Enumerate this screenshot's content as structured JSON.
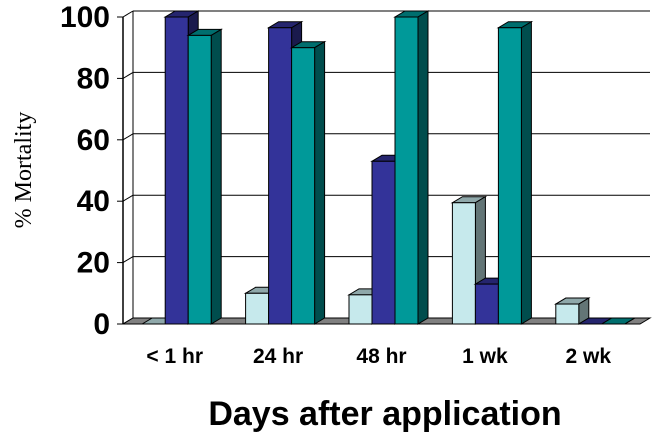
{
  "chart_data": {
    "type": "bar",
    "title": "",
    "xlabel": "Days after application",
    "ylabel": "% Mortality",
    "ylim": [
      0,
      100
    ],
    "yticks": [
      0,
      20,
      40,
      60,
      80,
      100
    ],
    "categories": [
      "< 1 hr",
      "24 hr",
      "48 hr",
      "1 wk",
      "2 wk"
    ],
    "series": [
      {
        "values": [
          0,
          10,
          9.5,
          39.5,
          6.5
        ],
        "color": "#c6e9ec"
      },
      {
        "values": [
          100,
          96.5,
          53,
          13,
          0
        ],
        "color": "#333399"
      },
      {
        "values": [
          94,
          90,
          100,
          96.5,
          0
        ],
        "color": "#009999"
      }
    ],
    "grid": true,
    "legend": "none"
  }
}
